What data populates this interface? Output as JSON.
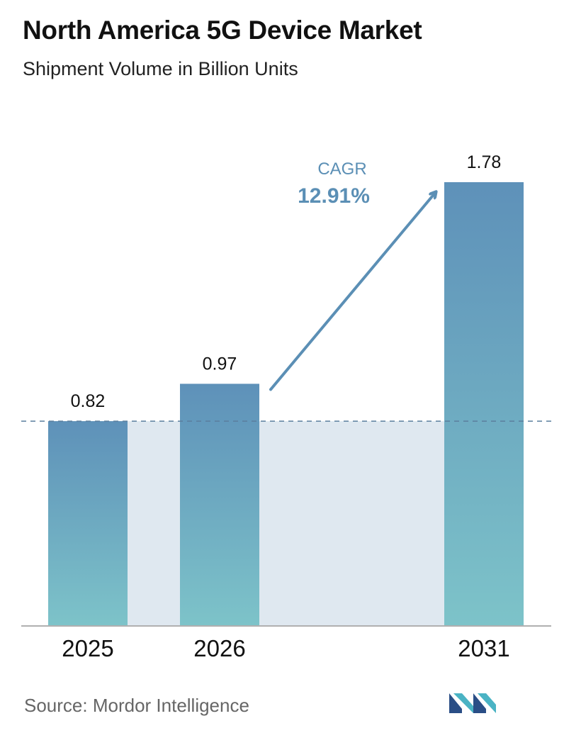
{
  "header": {
    "title": "North America 5G Device Market",
    "subtitle": "Shipment Volume in Billion Units"
  },
  "chart_data": {
    "type": "bar",
    "categories": [
      "2025",
      "2026",
      "2031"
    ],
    "values": [
      0.82,
      0.97,
      1.78
    ],
    "value_labels": [
      "0.82",
      "0.97",
      "1.78"
    ],
    "ylim": [
      0,
      2.0
    ],
    "grid": false,
    "reference_line_value": 0.82,
    "annotation": {
      "label": "CAGR",
      "value": "12.91%"
    }
  },
  "colors": {
    "bar_top": "#5e91b9",
    "bar_bottom": "#7dc3c9",
    "band": "#dfe8f0",
    "arrow": "#5b8fb5",
    "cagr_text": "#5b8fb5",
    "baseline": "#b0b0b0",
    "dashed_line": "#5b7f9e"
  },
  "footer": {
    "source": "Source:  Mordor Intelligence",
    "logo_icon": "mordor-intelligence-logo"
  }
}
